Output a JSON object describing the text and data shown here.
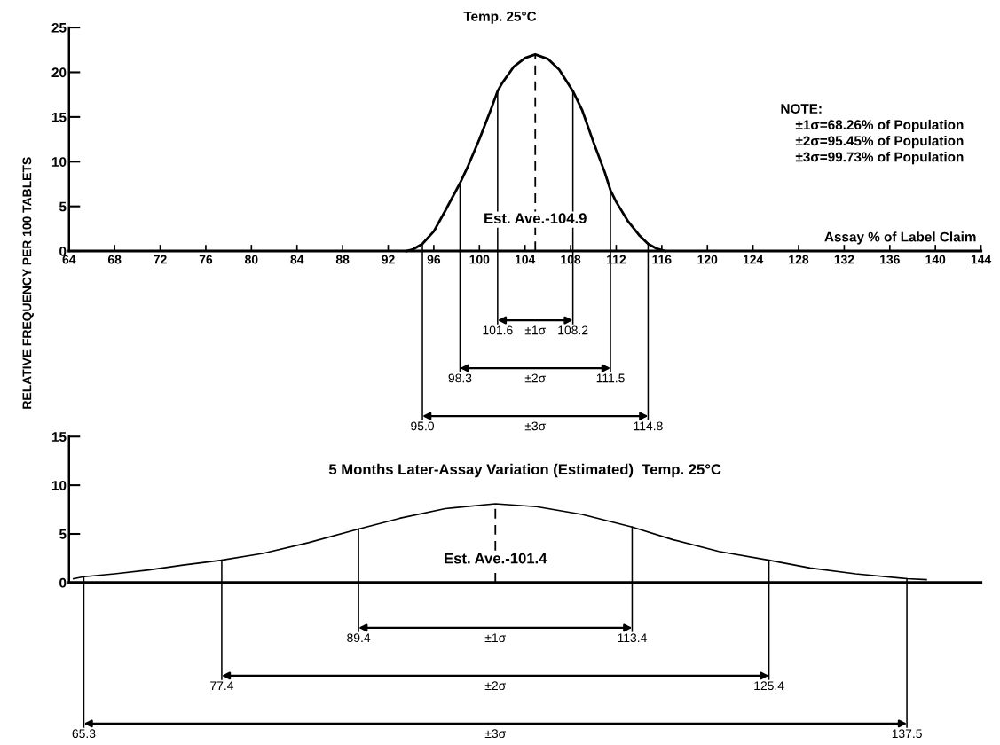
{
  "chart_data": [
    {
      "type": "line",
      "title": "Temp. 25°C",
      "ylabel": "RELATIVE FREQUENCY PER 100 TABLETS",
      "xlabel": "Assay % of Label Claim",
      "xlim": [
        64,
        144
      ],
      "xticks": [
        64,
        68,
        72,
        76,
        80,
        84,
        88,
        92,
        96,
        100,
        104,
        108,
        112,
        116,
        120,
        124,
        128,
        132,
        136,
        140,
        144
      ],
      "ylim": [
        0,
        25
      ],
      "yticks": [
        0,
        5,
        10,
        15,
        20,
        25
      ],
      "series": [
        {
          "color": "#000000",
          "line_style": "solid",
          "x": [
            93.6,
            94.2,
            95.0,
            96.0,
            97.0,
            98.3,
            99.0,
            100.0,
            101.0,
            101.6,
            102.0,
            103.0,
            104.0,
            104.9,
            106.0,
            107.0,
            108.2,
            109.0,
            110.0,
            111.0,
            111.5,
            112.0,
            113.0,
            114.0,
            114.8,
            115.5,
            116.3
          ],
          "values": [
            0,
            0.2,
            0.8,
            2.2,
            4.5,
            7.6,
            9.5,
            12.5,
            15.8,
            17.9,
            18.8,
            20.6,
            21.6,
            22,
            21.5,
            20.3,
            17.9,
            15.8,
            12.2,
            8.8,
            6.8,
            5.5,
            3.4,
            1.8,
            0.8,
            0.3,
            0
          ]
        }
      ],
      "ref_lines": [
        {
          "axis": "x",
          "value": 104.9,
          "label": "Est. Ave.-104.9",
          "line_style": "dashed",
          "color": "#000000"
        },
        {
          "axis": "x",
          "value": 101.6,
          "label": "101.6",
          "color": "#000000"
        },
        {
          "axis": "x",
          "value": 108.2,
          "label": "108.2",
          "color": "#000000"
        },
        {
          "axis": "x",
          "value": 98.3,
          "label": "98.3",
          "color": "#000000"
        },
        {
          "axis": "x",
          "value": 111.5,
          "label": "111.5",
          "color": "#000000"
        },
        {
          "axis": "x",
          "value": 95.0,
          "label": "95.0",
          "color": "#000000"
        },
        {
          "axis": "x",
          "value": 114.8,
          "label": "114.8",
          "color": "#000000"
        }
      ],
      "annotations": [
        "±1σ",
        "±2σ",
        "±3σ",
        "NOTE:\n    ±1σ=68.26% of Population\n    ±2σ=95.45% of Population\n    ±3σ=99.73% of Population"
      ]
    },
    {
      "type": "line",
      "title": "5 Months Later-Assay Variation (Estimated)  Temp. 25°C",
      "xlim": [
        64,
        144
      ],
      "ylim": [
        0,
        15
      ],
      "yticks": [
        0,
        5,
        10,
        15
      ],
      "tick_labels": "y",
      "series": [
        {
          "color": "#000000",
          "line_style": "solid",
          "x": [
            64.4,
            65.3,
            68.0,
            71.0,
            74.0,
            77.4,
            81.0,
            85.0,
            89.4,
            93.0,
            97.0,
            101.4,
            105.0,
            109.0,
            113.4,
            117.0,
            121.0,
            125.4,
            129.0,
            133.0,
            137.5,
            139.2
          ],
          "values": [
            0.4,
            0.6,
            0.9,
            1.3,
            1.8,
            2.3,
            3.0,
            4.1,
            5.5,
            6.6,
            7.6,
            8.1,
            7.8,
            7.0,
            5.7,
            4.4,
            3.2,
            2.3,
            1.5,
            0.9,
            0.4,
            0.3
          ]
        }
      ],
      "ref_lines": [
        {
          "axis": "x",
          "value": 101.4,
          "label": "Est. Ave.-101.4",
          "line_style": "dashed",
          "color": "#000000"
        },
        {
          "axis": "x",
          "value": 89.4,
          "label": "89.4",
          "color": "#000000"
        },
        {
          "axis": "x",
          "value": 113.4,
          "label": "113.4",
          "color": "#000000"
        },
        {
          "axis": "x",
          "value": 77.4,
          "label": "77.4",
          "color": "#000000"
        },
        {
          "axis": "x",
          "value": 125.4,
          "label": "125.4",
          "color": "#000000"
        },
        {
          "axis": "x",
          "value": 65.3,
          "label": "65.3",
          "color": "#000000"
        },
        {
          "axis": "x",
          "value": 137.5,
          "label": "137.5",
          "color": "#000000"
        }
      ],
      "annotations": [
        "±1σ",
        "±2σ",
        "±3σ"
      ]
    }
  ]
}
